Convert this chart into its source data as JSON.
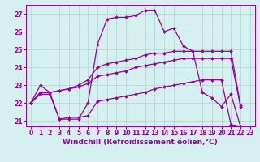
{
  "xlabel": "Windchill (Refroidissement éolien,°C)",
  "background_color": "#d6f0ef",
  "line_color": "#990099",
  "grid_color": "#b0d4d4",
  "xlim": [
    -0.5,
    23.5
  ],
  "ylim": [
    20.7,
    27.5
  ],
  "yticks": [
    21,
    22,
    23,
    24,
    25,
    26,
    27
  ],
  "xticks": [
    0,
    1,
    2,
    3,
    4,
    5,
    6,
    7,
    8,
    9,
    10,
    11,
    12,
    13,
    14,
    15,
    16,
    17,
    18,
    19,
    20,
    21,
    22,
    23
  ],
  "series": [
    {
      "x": [
        0,
        1,
        2,
        3,
        4,
        5,
        6,
        7,
        8,
        9,
        10,
        11,
        12,
        13,
        14,
        15,
        16,
        17,
        18,
        19,
        20,
        21,
        22
      ],
      "y": [
        22.0,
        23.0,
        22.6,
        21.1,
        21.1,
        21.1,
        22.0,
        25.3,
        26.7,
        26.8,
        26.8,
        26.9,
        27.2,
        27.2,
        26.0,
        26.2,
        25.2,
        24.9,
        22.6,
        22.3,
        21.8,
        22.5,
        20.7
      ]
    },
    {
      "x": [
        0,
        1,
        2,
        3,
        4,
        5,
        6,
        7,
        8,
        9,
        10,
        11,
        12,
        13,
        14,
        15,
        16,
        17,
        18,
        19,
        20,
        21,
        22
      ],
      "y": [
        22.0,
        22.5,
        22.5,
        21.1,
        21.2,
        21.2,
        21.3,
        22.1,
        22.2,
        22.3,
        22.4,
        22.5,
        22.6,
        22.8,
        22.9,
        23.0,
        23.1,
        23.2,
        23.3,
        23.3,
        23.3,
        20.8,
        20.7
      ]
    },
    {
      "x": [
        0,
        1,
        2,
        3,
        4,
        5,
        6,
        7,
        8,
        9,
        10,
        11,
        12,
        13,
        14,
        15,
        16,
        17,
        18,
        19,
        20,
        21,
        22
      ],
      "y": [
        22.0,
        22.6,
        22.6,
        22.7,
        22.8,
        22.9,
        23.1,
        23.5,
        23.6,
        23.7,
        23.8,
        24.0,
        24.1,
        24.2,
        24.3,
        24.4,
        24.5,
        24.5,
        24.5,
        24.5,
        24.5,
        24.5,
        21.8
      ]
    },
    {
      "x": [
        0,
        1,
        2,
        3,
        4,
        5,
        6,
        7,
        8,
        9,
        10,
        11,
        12,
        13,
        14,
        15,
        16,
        17,
        18,
        19,
        20,
        21,
        22
      ],
      "y": [
        22.0,
        22.6,
        22.6,
        22.7,
        22.8,
        23.0,
        23.3,
        24.0,
        24.2,
        24.3,
        24.4,
        24.5,
        24.7,
        24.8,
        24.8,
        24.9,
        24.9,
        24.9,
        24.9,
        24.9,
        24.9,
        24.9,
        21.9
      ]
    }
  ],
  "marker": "D",
  "markersize": 2.0,
  "linewidth": 0.9,
  "tick_labelsize": 5.5,
  "xlabel_fontsize": 6.5
}
